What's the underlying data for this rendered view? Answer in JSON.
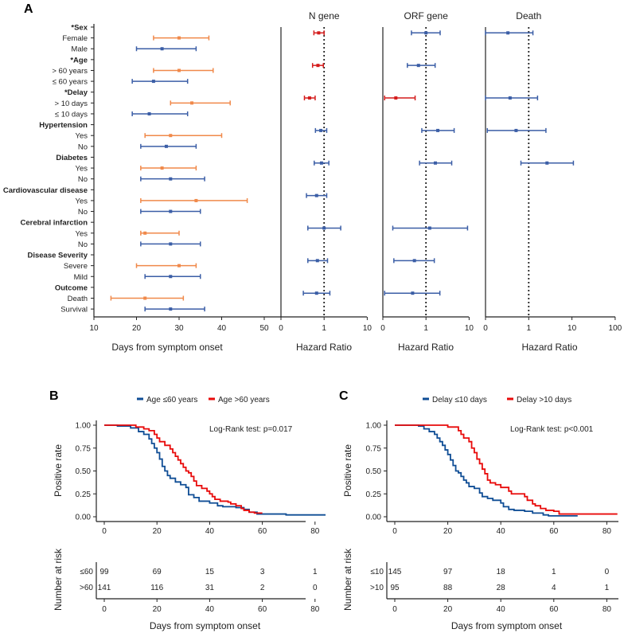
{
  "figure_labels": {
    "a": "A",
    "b": "B",
    "c": "C"
  },
  "colors": {
    "orange": "#f0894a",
    "blue": "#3b5ea6",
    "red": "#d41c1c",
    "km_blue": "#0f4d95",
    "km_red": "#e80a0a"
  },
  "chart_data": [
    {
      "type": "forest",
      "panels": {
        "days": {
          "xlabel": "Days from symptom onset",
          "ticks": [
            "10",
            "20",
            "30",
            "40",
            "50"
          ],
          "xlim": [
            10,
            50
          ]
        },
        "n_gene": {
          "title": "N gene",
          "xlabel": "Hazard Ratio",
          "ticks": [
            "0",
            "1",
            "10"
          ],
          "scale": "log",
          "xlim": [
            0.1,
            10
          ]
        },
        "orf_gene": {
          "title": "ORF gene",
          "xlabel": "Hazard Ratio",
          "ticks": [
            "0",
            "1",
            "10"
          ],
          "scale": "log",
          "xlim": [
            0.1,
            10
          ]
        },
        "death": {
          "title": "Death",
          "xlabel": "Hazard Ratio",
          "ticks": [
            "0",
            "1",
            "10",
            "100"
          ],
          "scale": "log",
          "xlim": [
            0.1,
            100
          ]
        }
      },
      "rows": [
        {
          "label": "*Sex",
          "header": true,
          "n_gene": [
            0.58,
            0.75,
            1.0
          ],
          "n_sig": true,
          "orf_gene": [
            0.46,
            1.0,
            2.13
          ],
          "death": [
            0.1,
            0.33,
            1.25
          ]
        },
        {
          "label": "Female",
          "days": [
            24,
            30,
            37
          ],
          "group": "orange"
        },
        {
          "label": "Male",
          "days": [
            20,
            26,
            34
          ],
          "group": "blue"
        },
        {
          "label": "*Age",
          "header": true,
          "n_gene": [
            0.54,
            0.72,
            0.96
          ],
          "n_sig": true,
          "orf_gene": [
            0.37,
            0.67,
            1.63
          ]
        },
        {
          "label": "> 60 years",
          "days": [
            24,
            30,
            38
          ],
          "group": "orange"
        },
        {
          "label": "≤ 60 years",
          "days": [
            19,
            24,
            32
          ],
          "group": "blue"
        },
        {
          "label": "*Delay",
          "header": true,
          "n_gene": [
            0.35,
            0.46,
            0.62
          ],
          "n_sig": true,
          "orf_gene": [
            0.11,
            0.2,
            0.56
          ],
          "orf_sig": true,
          "death": [
            0.1,
            0.37,
            1.6
          ]
        },
        {
          "label": "> 10 days",
          "days": [
            28,
            33,
            42
          ],
          "group": "orange"
        },
        {
          "label": "≤ 10 days",
          "days": [
            19,
            23,
            32
          ],
          "group": "blue"
        },
        {
          "label": "Hypertension",
          "header": true,
          "n_gene": [
            0.63,
            0.84,
            1.15
          ],
          "orf_gene": [
            0.8,
            1.88,
            4.5
          ],
          "death": [
            0.11,
            0.51,
            2.5
          ]
        },
        {
          "label": "Yes",
          "days": [
            22,
            28,
            40
          ],
          "group": "orange"
        },
        {
          "label": "No",
          "days": [
            21,
            27,
            34
          ],
          "group": "blue"
        },
        {
          "label": "Diabetes",
          "header": true,
          "n_gene": [
            0.59,
            0.87,
            1.29
          ],
          "orf_gene": [
            0.71,
            1.65,
            3.95
          ],
          "death": [
            0.66,
            2.65,
            10.8
          ]
        },
        {
          "label": "Yes",
          "days": [
            21,
            26,
            34
          ],
          "group": "orange"
        },
        {
          "label": "No",
          "days": [
            21,
            28,
            36
          ],
          "group": "blue"
        },
        {
          "label": "Cardiovascular disease",
          "header": true,
          "n_gene": [
            0.39,
            0.67,
            1.15
          ]
        },
        {
          "label": "Yes",
          "days": [
            21,
            34,
            46
          ],
          "group": "orange"
        },
        {
          "label": "No",
          "days": [
            21,
            28,
            35
          ],
          "group": "blue"
        },
        {
          "label": "Cerebral infarction",
          "header": true,
          "n_gene": [
            0.42,
            1.0,
            2.43
          ],
          "orf_gene": [
            0.17,
            1.22,
            9.2
          ]
        },
        {
          "label": "Yes",
          "days": [
            21,
            22,
            30
          ],
          "group": "orange"
        },
        {
          "label": "No",
          "days": [
            21,
            28,
            35
          ],
          "group": "blue"
        },
        {
          "label": "Disease Severity",
          "header": true,
          "n_gene": [
            0.42,
            0.7,
            1.2
          ],
          "orf_gene": [
            0.18,
            0.54,
            1.56
          ]
        },
        {
          "label": "Severe",
          "days": [
            20,
            30,
            34
          ],
          "group": "orange"
        },
        {
          "label": "Mild",
          "days": [
            22,
            28,
            35
          ],
          "group": "blue"
        },
        {
          "label": "Outcome",
          "header": true,
          "n_gene": [
            0.33,
            0.67,
            1.36
          ],
          "orf_gene": [
            0.11,
            0.49,
            2.1
          ]
        },
        {
          "label": "Death",
          "days": [
            14,
            22,
            31
          ],
          "group": "orange"
        },
        {
          "label": "Survival",
          "days": [
            22,
            28,
            36
          ],
          "group": "blue"
        }
      ]
    },
    {
      "type": "line",
      "panel": "B",
      "ylabel": "Positive rate",
      "xlabel": "Days  from symptom onset",
      "yticks": [
        "1.00",
        "0.75",
        "0.50",
        "0.25",
        "0.00"
      ],
      "xticks": [
        "0",
        "20",
        "40",
        "60",
        "80"
      ],
      "xlim": [
        0,
        84
      ],
      "ylim": [
        0,
        1
      ],
      "annotation": "Log-Rank test: p=0.017",
      "risk_label": "Number at risk",
      "series": [
        {
          "name": "Age ≤60 years",
          "risk_name": "≤60",
          "color": "km_blue",
          "risk": [
            "99",
            "69",
            "15",
            "3",
            "1"
          ],
          "t": [
            0,
            5,
            10,
            13,
            15,
            17,
            18,
            19,
            20,
            21,
            22,
            23,
            24,
            25,
            27,
            29,
            31,
            32,
            34,
            36,
            40,
            43,
            45,
            50,
            53,
            55,
            58,
            69,
            84
          ],
          "s": [
            1,
            0.99,
            0.97,
            0.93,
            0.9,
            0.85,
            0.8,
            0.75,
            0.7,
            0.63,
            0.55,
            0.5,
            0.45,
            0.42,
            0.38,
            0.35,
            0.32,
            0.24,
            0.21,
            0.17,
            0.15,
            0.12,
            0.11,
            0.1,
            0.08,
            0.05,
            0.03,
            0.02,
            0.02
          ]
        },
        {
          "name": "Age >60 years",
          "risk_name": ">60",
          "color": "km_red",
          "risk": [
            "141",
            "116",
            "31",
            "2",
            "0"
          ],
          "t": [
            0,
            10,
            12,
            15,
            17,
            19,
            20,
            21,
            23,
            25,
            26,
            27,
            28,
            29,
            30,
            31,
            32,
            33,
            34,
            35,
            37,
            39,
            40,
            41,
            42,
            44,
            47,
            48,
            50,
            52,
            53,
            55,
            57,
            60
          ],
          "s": [
            1,
            1,
            0.98,
            0.96,
            0.94,
            0.9,
            0.86,
            0.82,
            0.78,
            0.74,
            0.7,
            0.66,
            0.62,
            0.58,
            0.54,
            0.5,
            0.48,
            0.44,
            0.39,
            0.34,
            0.31,
            0.28,
            0.25,
            0.22,
            0.19,
            0.17,
            0.16,
            0.14,
            0.12,
            0.09,
            0.07,
            0.05,
            0.04,
            0.04
          ]
        }
      ]
    },
    {
      "type": "line",
      "panel": "C",
      "ylabel": "Positive rate",
      "xlabel": "Days from symptom onset",
      "yticks": [
        "1.00",
        "0.75",
        "0.50",
        "0.25",
        "0.00"
      ],
      "xticks": [
        "0",
        "20",
        "40",
        "60",
        "80"
      ],
      "xlim": [
        0,
        84
      ],
      "ylim": [
        0,
        1
      ],
      "annotation": "Log-Rank test: p<0.001",
      "risk_label": "Number at risk",
      "series": [
        {
          "name": "Delay ≤10 days",
          "risk_name": "≤10",
          "color": "km_blue",
          "risk": [
            "145",
            "97",
            "18",
            "1",
            "0"
          ],
          "t": [
            0,
            9,
            11,
            13,
            15,
            16,
            17,
            18,
            19,
            20,
            21,
            22,
            23,
            24,
            25,
            26,
            27,
            28,
            30,
            32,
            33,
            35,
            37,
            40,
            41,
            43,
            45,
            49,
            52,
            56,
            58,
            69
          ],
          "s": [
            1,
            0.99,
            0.96,
            0.93,
            0.9,
            0.86,
            0.82,
            0.78,
            0.73,
            0.68,
            0.62,
            0.56,
            0.5,
            0.48,
            0.44,
            0.4,
            0.37,
            0.33,
            0.31,
            0.26,
            0.22,
            0.2,
            0.18,
            0.15,
            0.11,
            0.08,
            0.07,
            0.06,
            0.04,
            0.02,
            0.01,
            0.01
          ]
        },
        {
          "name": "Delay >10 days",
          "risk_name": ">10",
          "color": "km_red",
          "risk": [
            "95",
            "88",
            "28",
            "4",
            "1"
          ],
          "t": [
            0,
            19,
            20,
            24,
            25,
            26,
            28,
            29,
            30,
            31,
            32,
            33,
            34,
            35,
            36,
            38,
            40,
            43,
            44,
            49,
            50,
            52,
            53,
            55,
            57,
            60,
            62,
            84
          ],
          "s": [
            1,
            1,
            0.98,
            0.94,
            0.9,
            0.86,
            0.82,
            0.75,
            0.7,
            0.63,
            0.58,
            0.52,
            0.47,
            0.4,
            0.37,
            0.35,
            0.32,
            0.28,
            0.25,
            0.22,
            0.18,
            0.14,
            0.12,
            0.09,
            0.07,
            0.06,
            0.03,
            0.03
          ]
        }
      ]
    }
  ]
}
